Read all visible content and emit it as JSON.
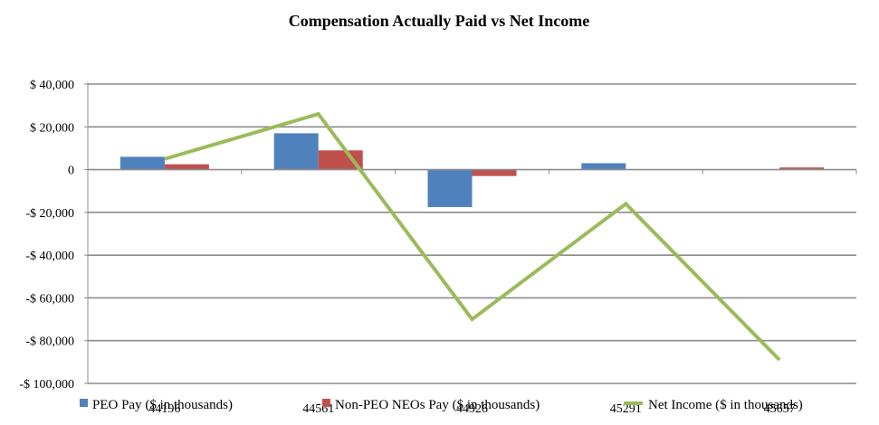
{
  "chart_data": {
    "type": "bar",
    "title": "Compensation Actually Paid vs Net Income",
    "categories": [
      "44196",
      "44561",
      "44926",
      "45291",
      "45657"
    ],
    "series": [
      {
        "name": "PEO Pay ($ in thousands)",
        "kind": "bar",
        "color": "#4f81bd",
        "values": [
          6000,
          17000,
          -17500,
          3000,
          0
        ]
      },
      {
        "name": "Non-PEO NEOs Pay ($ in thousands)",
        "kind": "bar",
        "color": "#c0504d",
        "values": [
          2500,
          9000,
          -3000,
          0,
          1000
        ]
      },
      {
        "name": "Net Income ($ in thousands)",
        "kind": "line",
        "color": "#9bbb59",
        "values": [
          5000,
          26000,
          -70000,
          -16000,
          -89000
        ]
      }
    ],
    "y_ticks": [
      40000,
      20000,
      0,
      -20000,
      -40000,
      -60000,
      -80000,
      -100000
    ],
    "y_tick_labels": [
      "$ 40,000",
      "$ 20,000",
      "0",
      "-$ 20,000",
      "-$ 40,000",
      "-$ 60,000",
      "-$ 80,000",
      "-$ 100,000"
    ],
    "ylim": [
      -100000,
      40000
    ],
    "grid": true,
    "legend": "bottom"
  }
}
